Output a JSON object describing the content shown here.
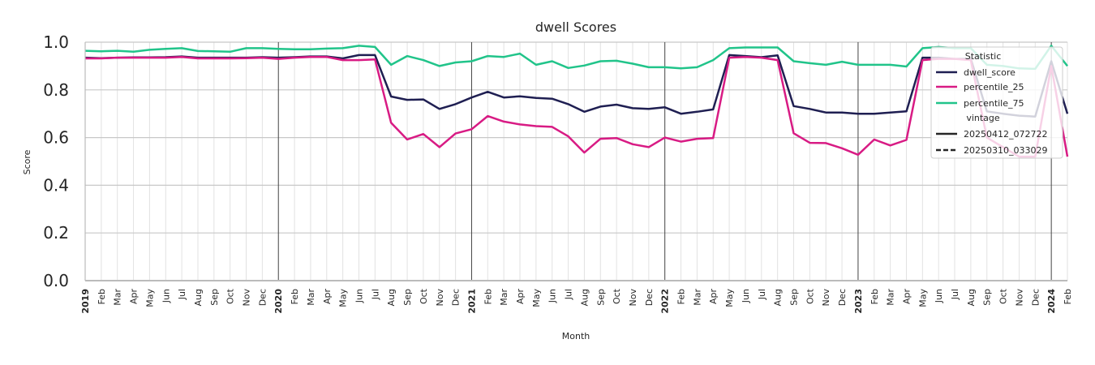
{
  "chart_data": {
    "type": "line",
    "title": "dwell Scores",
    "xlabel": "Month",
    "ylabel": "Score",
    "ylim": [
      0,
      1
    ],
    "yticks": [
      "0.0",
      "0.2",
      "0.4",
      "0.6",
      "0.8",
      "1.0"
    ],
    "x_start": "2019-01",
    "x_end": "2024-02",
    "x_tick_labels": [
      "2019",
      "Feb",
      "Mar",
      "Apr",
      "May",
      "Jun",
      "Jul",
      "Aug",
      "Sep",
      "Oct",
      "Nov",
      "Dec",
      "2020",
      "Feb",
      "Mar",
      "Apr",
      "May",
      "Jun",
      "Jul",
      "Aug",
      "Sep",
      "Oct",
      "Nov",
      "Dec",
      "2021",
      "Feb",
      "Mar",
      "Apr",
      "May",
      "Jun",
      "Jul",
      "Aug",
      "Sep",
      "Oct",
      "Nov",
      "Dec",
      "2022",
      "Feb",
      "Mar",
      "Apr",
      "May",
      "Jun",
      "Jul",
      "Aug",
      "Sep",
      "Oct",
      "Nov",
      "Dec",
      "2023",
      "Feb",
      "Mar",
      "Apr",
      "May",
      "Jun",
      "Jul",
      "Aug",
      "Sep",
      "Oct",
      "Nov",
      "Dec",
      "2024",
      "Feb"
    ],
    "grid": true,
    "legend_position": "top-right",
    "legend": {
      "statistic_title": "Statistic",
      "statistics": [
        {
          "name": "dwell_score",
          "color": "#1f1f52"
        },
        {
          "name": "percentile_25",
          "color": "#d81b84"
        },
        {
          "name": "percentile_75",
          "color": "#21c48a"
        }
      ],
      "vintage_title": "vintage",
      "vintages": [
        {
          "name": "20250412_072722",
          "style": "solid"
        },
        {
          "name": "20250310_033029",
          "style": "dashed"
        }
      ]
    },
    "series": [
      {
        "name": "dwell_score",
        "vintage": "20250412_072722",
        "color": "#1f1f52",
        "values": [
          0.935,
          0.933,
          0.935,
          0.936,
          0.936,
          0.937,
          0.94,
          0.935,
          0.935,
          0.935,
          0.935,
          0.937,
          0.935,
          0.937,
          0.94,
          0.94,
          0.932,
          0.946,
          0.946,
          0.772,
          0.758,
          0.76,
          0.72,
          0.74,
          0.768,
          0.792,
          0.768,
          0.773,
          0.766,
          0.763,
          0.74,
          0.708,
          0.73,
          0.738,
          0.723,
          0.72,
          0.727,
          0.7,
          0.708,
          0.718,
          0.946,
          0.942,
          0.937,
          0.945,
          0.732,
          0.72,
          0.705,
          0.705,
          0.7,
          0.7,
          0.705,
          0.71,
          0.935,
          0.935,
          0.93,
          0.93,
          0.71,
          0.7,
          0.692,
          0.688,
          0.92,
          0.7
        ]
      },
      {
        "name": "percentile_25",
        "vintage": "20250412_072722",
        "color": "#d81b84",
        "values": [
          0.932,
          0.932,
          0.935,
          0.935,
          0.935,
          0.935,
          0.938,
          0.932,
          0.932,
          0.932,
          0.933,
          0.935,
          0.93,
          0.935,
          0.938,
          0.938,
          0.925,
          0.925,
          0.928,
          0.662,
          0.592,
          0.615,
          0.56,
          0.617,
          0.635,
          0.69,
          0.667,
          0.655,
          0.648,
          0.645,
          0.605,
          0.537,
          0.595,
          0.598,
          0.572,
          0.56,
          0.6,
          0.583,
          0.595,
          0.598,
          0.935,
          0.938,
          0.935,
          0.925,
          0.618,
          0.578,
          0.577,
          0.555,
          0.528,
          0.592,
          0.567,
          0.59,
          0.925,
          0.93,
          0.93,
          0.925,
          0.6,
          0.56,
          0.52,
          0.52,
          0.9,
          0.52
        ]
      },
      {
        "name": "percentile_75",
        "vintage": "20250412_072722",
        "color": "#21c48a",
        "values": [
          0.964,
          0.962,
          0.964,
          0.96,
          0.968,
          0.972,
          0.975,
          0.963,
          0.962,
          0.96,
          0.975,
          0.975,
          0.972,
          0.97,
          0.97,
          0.973,
          0.975,
          0.985,
          0.98,
          0.905,
          0.942,
          0.925,
          0.9,
          0.915,
          0.92,
          0.942,
          0.938,
          0.952,
          0.905,
          0.92,
          0.892,
          0.902,
          0.92,
          0.922,
          0.91,
          0.895,
          0.895,
          0.89,
          0.895,
          0.925,
          0.975,
          0.978,
          0.978,
          0.978,
          0.92,
          0.912,
          0.905,
          0.918,
          0.905,
          0.905,
          0.905,
          0.898,
          0.975,
          0.98,
          0.975,
          0.975,
          0.905,
          0.9,
          0.89,
          0.888,
          0.985,
          0.9
        ]
      }
    ]
  }
}
